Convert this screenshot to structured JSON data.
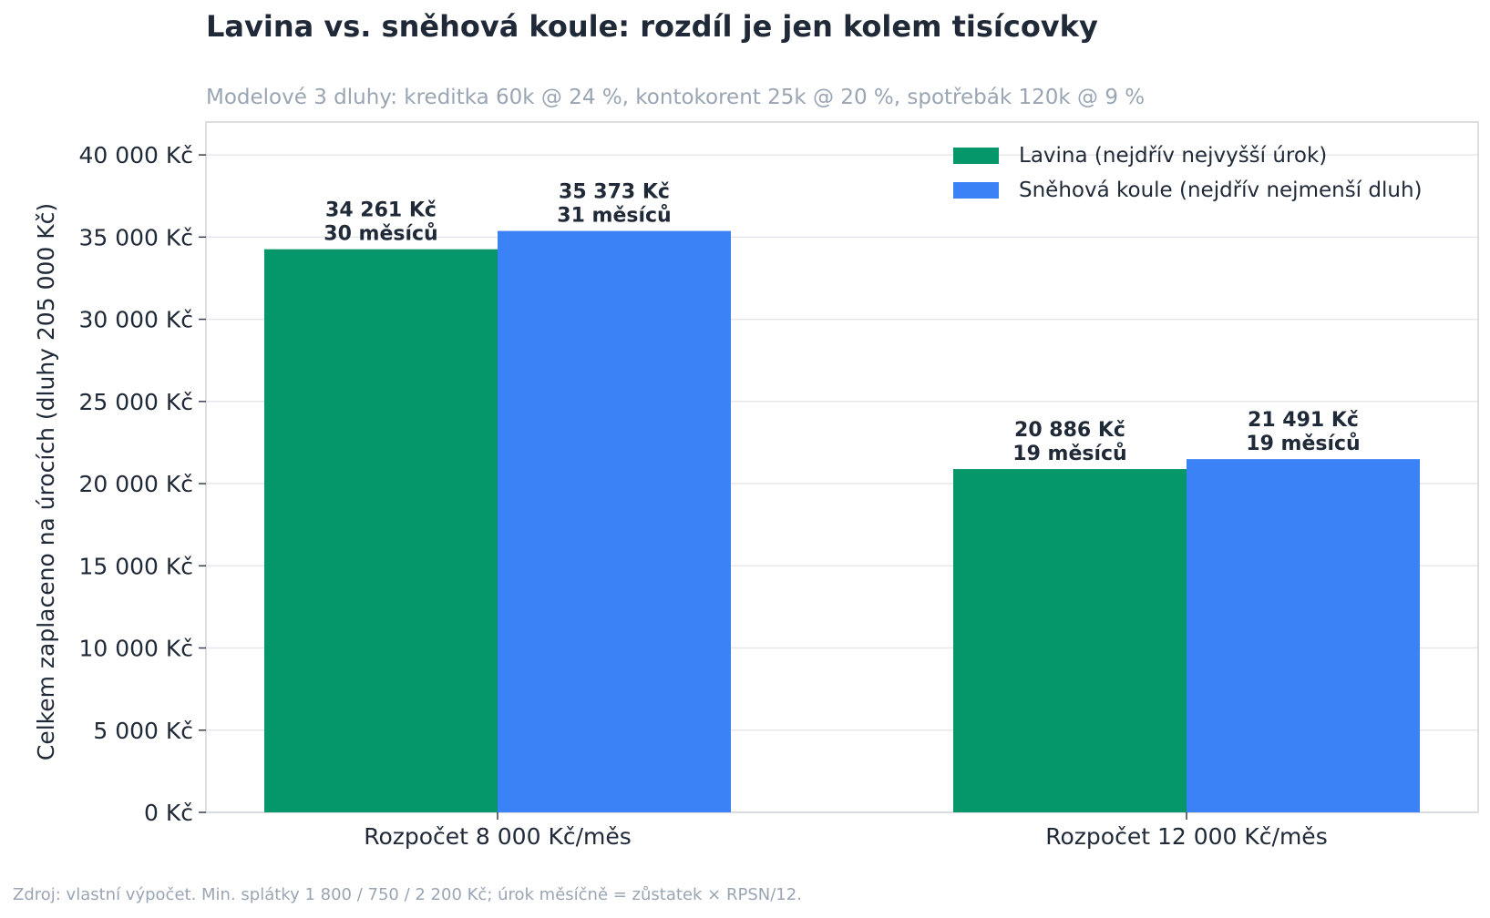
{
  "header": {
    "title": "Lavina vs. sněhová koule: rozdíl je jen kolem tisícovky",
    "subtitle": "Modelové 3 dluhy: kreditka 60k @ 24 %, kontokorent 25k @ 20 %, spotřebák 120k @ 9 %"
  },
  "footer": {
    "source": "Zdroj: vlastní výpočet. Min. splátky 1 800 / 750 / 2 200 Kč; úrok měsíčně = zůstatek × RPSN/12."
  },
  "chart_data": {
    "type": "bar",
    "title": "Lavina vs. sněhová koule: rozdíl je jen kolem tisícovky",
    "subtitle": "Modelové 3 dluhy: kreditka 60k @ 24 %, kontokorent 25k @ 20 %, spotřebák 120k @ 9 %",
    "xlabel": "",
    "ylabel": "Celkem zaplaceno na úrocích (dluhy 205 000 Kč)",
    "ylim": [
      0,
      42000
    ],
    "y_ticks": [
      0,
      5000,
      10000,
      15000,
      20000,
      25000,
      30000,
      35000,
      40000
    ],
    "y_tick_labels": [
      "0 Kč",
      "5 000 Kč",
      "10 000 Kč",
      "15 000 Kč",
      "20 000 Kč",
      "25 000 Kč",
      "30 000 Kč",
      "35 000 Kč",
      "40 000 Kč"
    ],
    "categories": [
      "Rozpočet 8 000 Kč/měs",
      "Rozpočet 12 000 Kč/měs"
    ],
    "grid": true,
    "legend_position": "top-right",
    "series": [
      {
        "name": "Lavina (nejdřív nejvyšší úrok)",
        "color": "#059669",
        "values": [
          34261,
          20886
        ],
        "value_labels": [
          "34 261 Kč",
          "20 886 Kč"
        ],
        "months_labels": [
          "30 měsíců",
          "19 měsíců"
        ]
      },
      {
        "name": "Sněhová koule (nejdřív nejmenší dluh)",
        "color": "#3b82f6",
        "values": [
          35373,
          21491
        ],
        "value_labels": [
          "35 373 Kč",
          "21 491 Kč"
        ],
        "months_labels": [
          "31 měsíců",
          "19 měsíců"
        ]
      }
    ]
  }
}
